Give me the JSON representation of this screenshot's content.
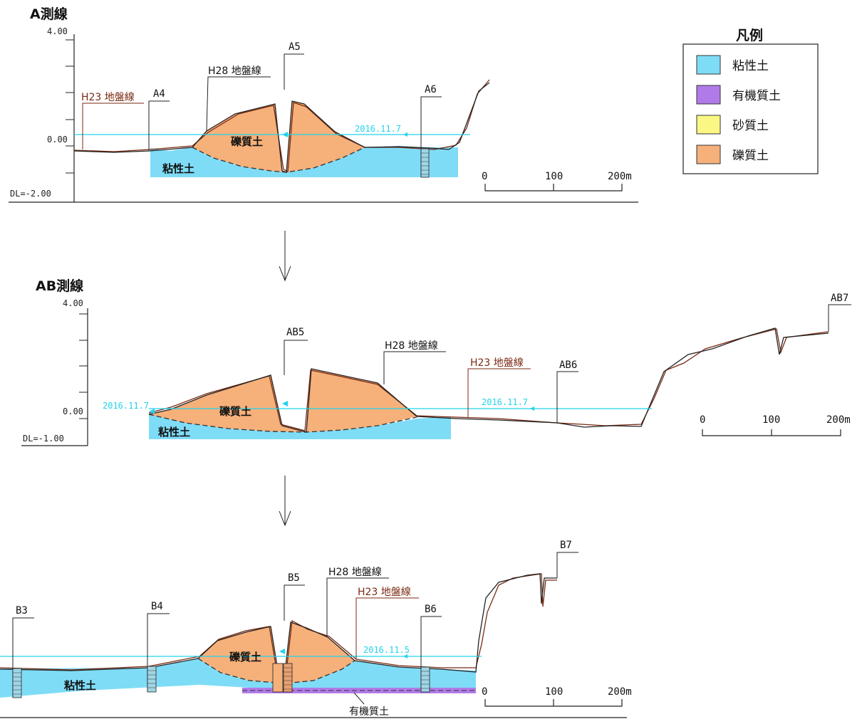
{
  "legend": {
    "title": "凡例",
    "items": [
      {
        "label": "粘性土",
        "color": "#7fdcf7"
      },
      {
        "label": "有機質土",
        "color": "#b07be8"
      },
      {
        "label": "砂質土",
        "color": "#fbf784"
      },
      {
        "label": "礫質土",
        "color": "#f6b07a"
      }
    ]
  },
  "colors": {
    "clay": "#7fdcf7",
    "organic": "#b07be8",
    "gravel": "#f6b07a",
    "water_line": "#21d3ec",
    "h23_line": "#7a2a12",
    "h28_line": "#222222"
  },
  "sectionA": {
    "title": "A測線",
    "y_top": "4.00",
    "y_zero": "0.00",
    "datum": "DL=-2.00",
    "h23_label": "H23 地盤線",
    "h28_label": "H28 地盤線",
    "water_date": "2016.11.7",
    "boreholes": [
      "A4",
      "A5",
      "A6"
    ],
    "soil_gravel": "礫質土",
    "soil_clay": "粘性土",
    "scale": [
      "0",
      "100",
      "200m"
    ]
  },
  "sectionAB": {
    "title": "AB測線",
    "y_top": "4.00",
    "y_zero": "0.00",
    "datum": "DL=-1.00",
    "h23_label": "H23 地盤線",
    "h28_label": "H28 地盤線",
    "water_date_left": "2016.11.7",
    "water_date_right": "2016.11.7",
    "boreholes": [
      "AB5",
      "AB6",
      "AB7"
    ],
    "soil_gravel": "礫質土",
    "soil_clay": "粘性土",
    "scale": [
      "0",
      "100",
      "200m"
    ]
  },
  "sectionB": {
    "h23_label": "H23 地盤線",
    "h28_label": "H28 地盤線",
    "water_date": "2016.11.5",
    "boreholes": [
      "B3",
      "B4",
      "B5",
      "B6",
      "B7"
    ],
    "soil_gravel": "礫質土",
    "soil_clay": "粘性土",
    "soil_organic": "有機質土",
    "scale": [
      "0",
      "100",
      "200m"
    ]
  }
}
